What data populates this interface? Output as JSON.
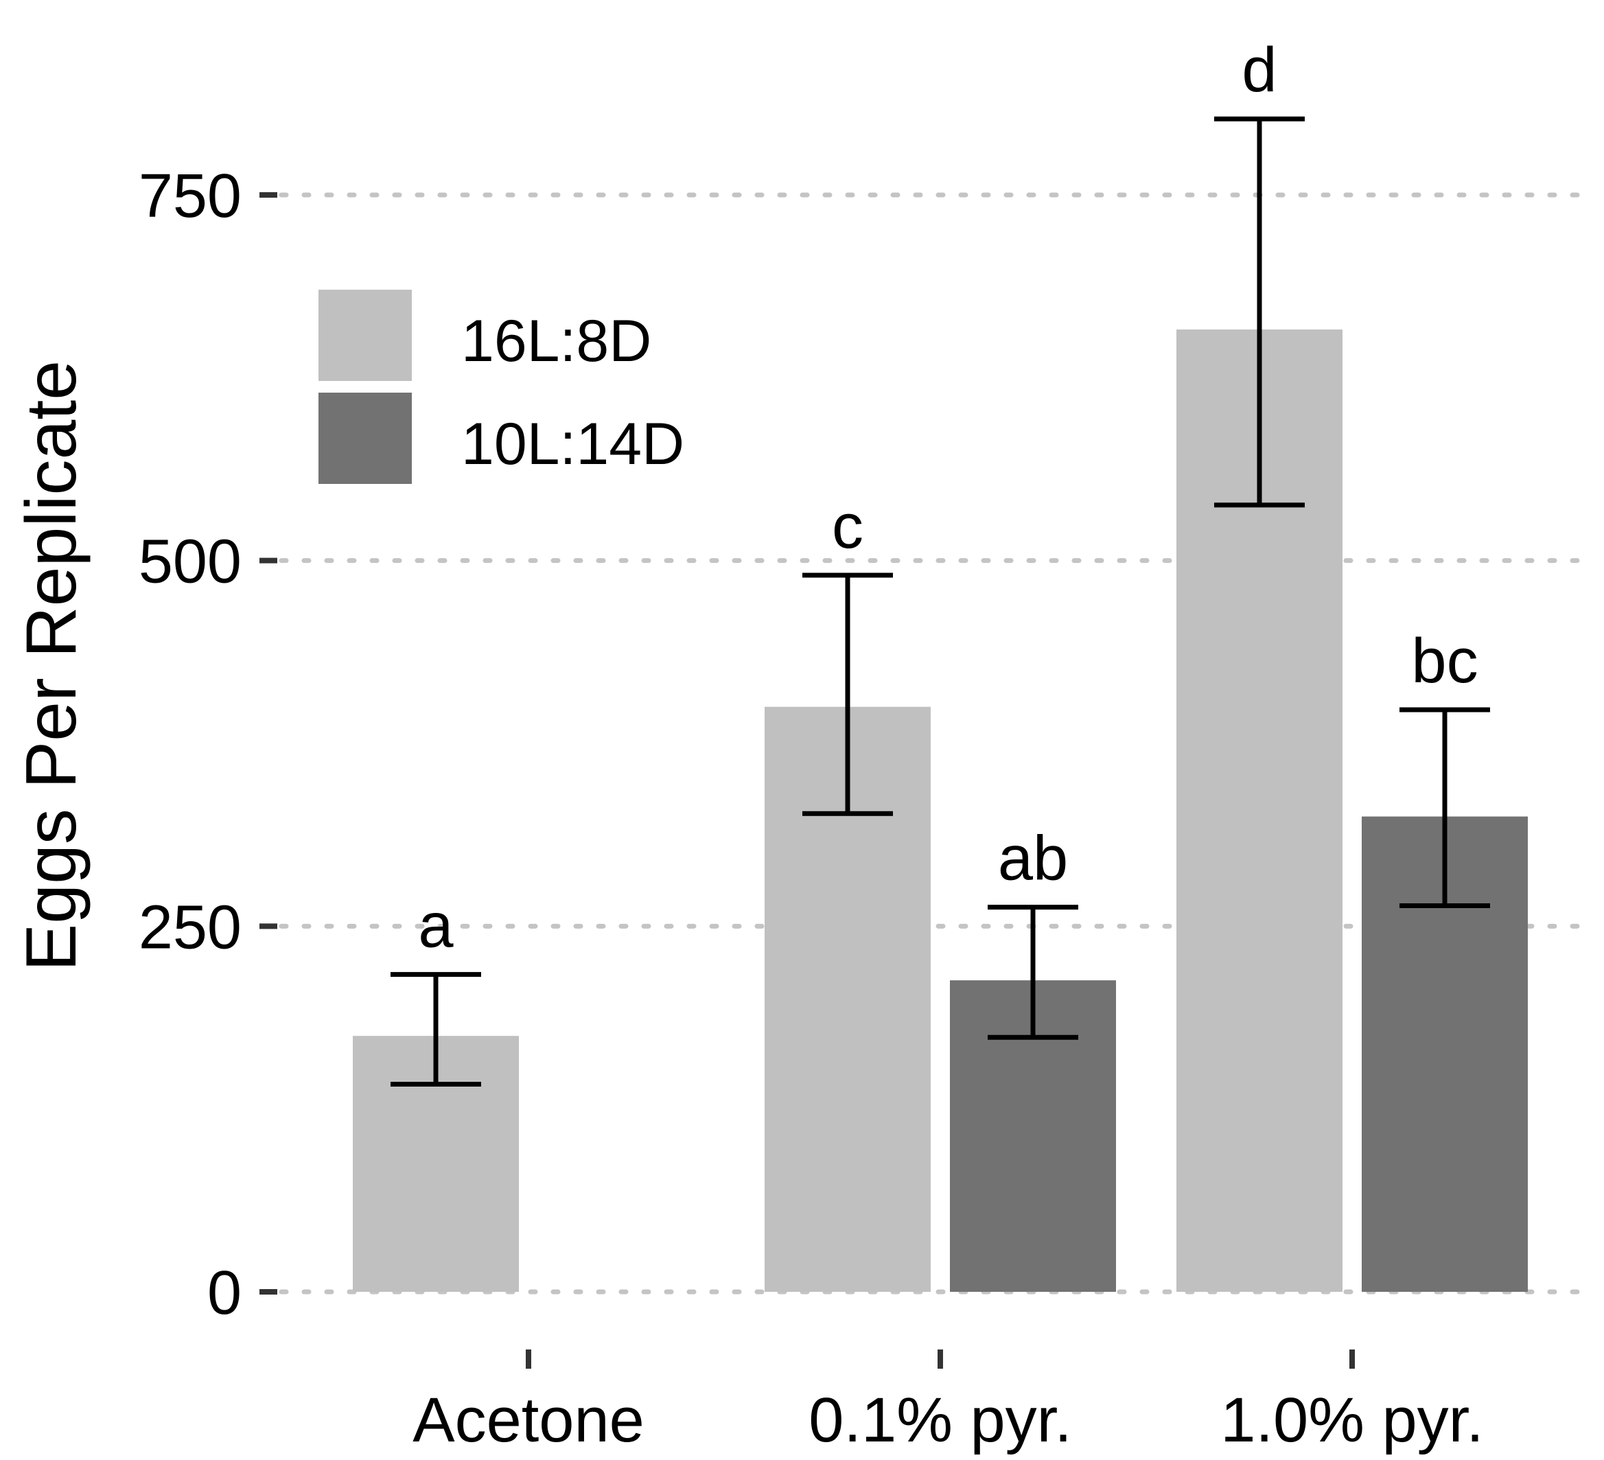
{
  "chart_data": {
    "type": "bar",
    "title": "",
    "xlabel": "",
    "ylabel": "Eggs Per Replicate",
    "ylim": [
      0,
      875
    ],
    "yticks": [
      0,
      250,
      500,
      750
    ],
    "grid": "horizontal dotted",
    "legend_position": "top-left",
    "categories": [
      "Acetone",
      "0.1% pyr.",
      "1.0% pyr."
    ],
    "series": [
      {
        "name": "16L:8D",
        "color": "#c0c0c0",
        "values": [
          175,
          400,
          658
        ],
        "error_low": [
          142,
          327,
          538
        ],
        "error_high": [
          217,
          490,
          802
        ],
        "labels": [
          "a",
          "c",
          "d"
        ]
      },
      {
        "name": "10L:14D",
        "color": "#727272",
        "values": [
          null,
          213,
          325
        ],
        "error_low": [
          null,
          174,
          264
        ],
        "error_high": [
          null,
          263,
          398
        ],
        "labels": [
          null,
          "ab",
          "bc"
        ]
      }
    ]
  }
}
